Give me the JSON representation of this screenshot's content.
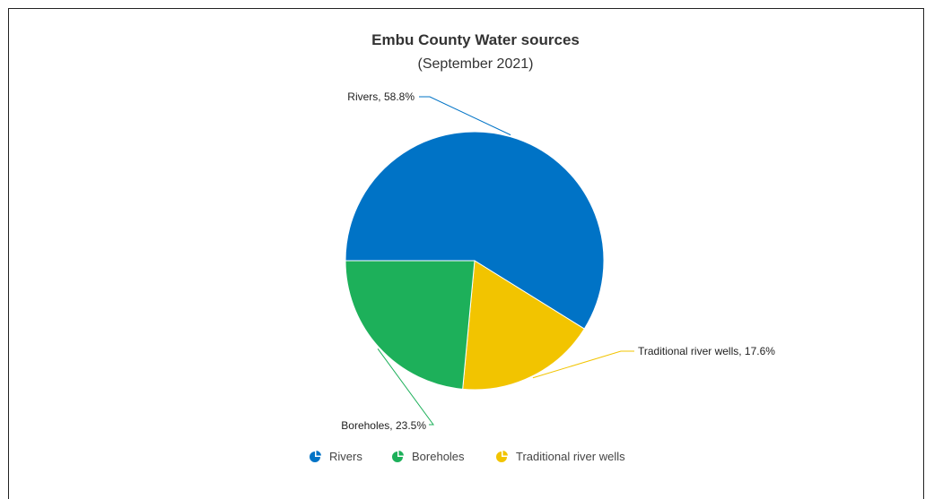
{
  "chart_data": {
    "type": "pie",
    "title": "Embu County Water sources",
    "subtitle": "(September 2021)",
    "slices": [
      {
        "label": "Rivers",
        "value": 58.8,
        "color": "#0073c6",
        "data_label": "Rivers, 58.8%"
      },
      {
        "label": "Traditional river wells",
        "value": 17.6,
        "color": "#f2c400",
        "data_label": "Traditional river wells, 17.6%"
      },
      {
        "label": "Boreholes",
        "value": 23.5,
        "color": "#1db05a",
        "data_label": "Boreholes, 23.5%"
      }
    ],
    "legend": {
      "placement": "bottom-center",
      "items": [
        "Rivers",
        "Boreholes",
        "Traditional river wells"
      ]
    }
  }
}
